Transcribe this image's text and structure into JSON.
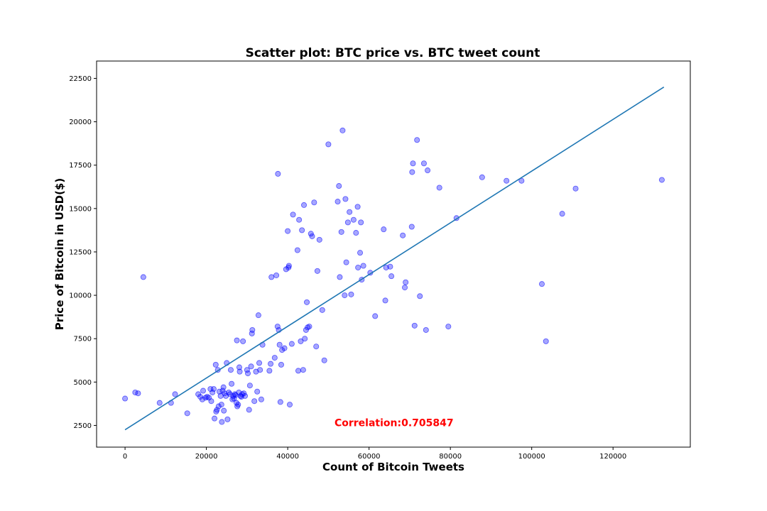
{
  "chart_data": {
    "type": "scatter",
    "title": "Scatter plot: BTC price vs. BTC tweet count",
    "xlabel": "Count of Bitcoin Tweets",
    "ylabel": "Price of Bitcoin in USD($)",
    "xlim": [
      -7000,
      139000
    ],
    "ylim": [
      1250,
      23500
    ],
    "xticks": [
      0,
      20000,
      40000,
      60000,
      80000,
      100000,
      120000
    ],
    "yticks": [
      2500,
      5000,
      7500,
      10000,
      12500,
      15000,
      17500,
      20000,
      22500
    ],
    "grid": false,
    "point_color": "#0000ff",
    "line_color": "#1f77b4",
    "annotation_color": "#ff0000",
    "annotation": "Correlation:0.705847",
    "annotation_pos": {
      "x": 51500,
      "y": 2450
    },
    "regression_line": [
      [
        0,
        2250
      ],
      [
        132500,
        22000
      ]
    ],
    "points": [
      [
        0,
        4050
      ],
      [
        2500,
        4400
      ],
      [
        3200,
        4350
      ],
      [
        4500,
        11050
      ],
      [
        8500,
        3800
      ],
      [
        11300,
        3800
      ],
      [
        12300,
        4300
      ],
      [
        15300,
        3200
      ],
      [
        18000,
        4300
      ],
      [
        18500,
        4150
      ],
      [
        19000,
        4000
      ],
      [
        19200,
        4500
      ],
      [
        19800,
        4100
      ],
      [
        20200,
        4150
      ],
      [
        20600,
        4100
      ],
      [
        21000,
        4600
      ],
      [
        21200,
        3900
      ],
      [
        21500,
        4400
      ],
      [
        21800,
        4600
      ],
      [
        22000,
        2900
      ],
      [
        22300,
        6000
      ],
      [
        22400,
        3300
      ],
      [
        22600,
        3400
      ],
      [
        22800,
        5700
      ],
      [
        23000,
        3600
      ],
      [
        23200,
        4450
      ],
      [
        23500,
        4200
      ],
      [
        23700,
        3700
      ],
      [
        23800,
        2700
      ],
      [
        24000,
        4500
      ],
      [
        24200,
        4700
      ],
      [
        24300,
        3350
      ],
      [
        24500,
        4350
      ],
      [
        24800,
        4200
      ],
      [
        25000,
        6100
      ],
      [
        25200,
        2850
      ],
      [
        25500,
        4400
      ],
      [
        25800,
        4300
      ],
      [
        26000,
        5700
      ],
      [
        26200,
        4900
      ],
      [
        26400,
        4000
      ],
      [
        26600,
        4200
      ],
      [
        26800,
        4050
      ],
      [
        27000,
        4300
      ],
      [
        27200,
        4250
      ],
      [
        27400,
        3800
      ],
      [
        27500,
        7400
      ],
      [
        27600,
        3600
      ],
      [
        27800,
        3700
      ],
      [
        28000,
        4400
      ],
      [
        28100,
        5850
      ],
      [
        28200,
        5600
      ],
      [
        28400,
        4200
      ],
      [
        28600,
        4150
      ],
      [
        28800,
        4300
      ],
      [
        29000,
        7350
      ],
      [
        29200,
        4350
      ],
      [
        29500,
        4200
      ],
      [
        30000,
        5700
      ],
      [
        30200,
        5500
      ],
      [
        30500,
        3400
      ],
      [
        30700,
        4800
      ],
      [
        31000,
        5900
      ],
      [
        31200,
        7800
      ],
      [
        31300,
        8000
      ],
      [
        31800,
        3900
      ],
      [
        32200,
        5600
      ],
      [
        32500,
        4450
      ],
      [
        32800,
        8850
      ],
      [
        33000,
        6100
      ],
      [
        33200,
        5700
      ],
      [
        33500,
        4000
      ],
      [
        33800,
        7150
      ],
      [
        35500,
        5650
      ],
      [
        35800,
        6050
      ],
      [
        36000,
        11050
      ],
      [
        36800,
        6400
      ],
      [
        37200,
        11150
      ],
      [
        37500,
        8200
      ],
      [
        37600,
        17000
      ],
      [
        37800,
        8000
      ],
      [
        38000,
        7150
      ],
      [
        38200,
        3850
      ],
      [
        38400,
        6000
      ],
      [
        38600,
        6850
      ],
      [
        39200,
        6950
      ],
      [
        39600,
        11500
      ],
      [
        40000,
        13700
      ],
      [
        40200,
        11600
      ],
      [
        40300,
        11700
      ],
      [
        40500,
        3700
      ],
      [
        41000,
        7200
      ],
      [
        41300,
        14650
      ],
      [
        42400,
        12600
      ],
      [
        42600,
        5650
      ],
      [
        42800,
        14350
      ],
      [
        43200,
        7350
      ],
      [
        43500,
        13750
      ],
      [
        43800,
        5700
      ],
      [
        44000,
        15200
      ],
      [
        44200,
        7500
      ],
      [
        44500,
        8000
      ],
      [
        44700,
        9600
      ],
      [
        44900,
        8150
      ],
      [
        45300,
        8200
      ],
      [
        45700,
        13550
      ],
      [
        46000,
        13400
      ],
      [
        46500,
        15350
      ],
      [
        47000,
        7050
      ],
      [
        47300,
        11400
      ],
      [
        47800,
        13200
      ],
      [
        48500,
        9150
      ],
      [
        49000,
        6250
      ],
      [
        50000,
        18700
      ],
      [
        52300,
        15400
      ],
      [
        52600,
        16300
      ],
      [
        52800,
        11050
      ],
      [
        53200,
        13650
      ],
      [
        53500,
        19500
      ],
      [
        54000,
        10000
      ],
      [
        54200,
        15550
      ],
      [
        54400,
        11900
      ],
      [
        54800,
        14200
      ],
      [
        55200,
        14800
      ],
      [
        55600,
        10050
      ],
      [
        56200,
        14350
      ],
      [
        56800,
        13600
      ],
      [
        57200,
        15100
      ],
      [
        57300,
        11600
      ],
      [
        57800,
        12450
      ],
      [
        58000,
        14200
      ],
      [
        58200,
        10900
      ],
      [
        58600,
        11700
      ],
      [
        60300,
        11300
      ],
      [
        61500,
        8800
      ],
      [
        63600,
        13800
      ],
      [
        64000,
        9700
      ],
      [
        64200,
        11600
      ],
      [
        65200,
        11650
      ],
      [
        65500,
        11100
      ],
      [
        68300,
        13450
      ],
      [
        68800,
        10450
      ],
      [
        69000,
        10750
      ],
      [
        70500,
        13950
      ],
      [
        70600,
        17100
      ],
      [
        70800,
        17600
      ],
      [
        71200,
        8250
      ],
      [
        71800,
        18950
      ],
      [
        72500,
        9950
      ],
      [
        73500,
        17600
      ],
      [
        74000,
        8000
      ],
      [
        74400,
        17200
      ],
      [
        77300,
        16200
      ],
      [
        79500,
        8200
      ],
      [
        81500,
        14450
      ],
      [
        87800,
        16800
      ],
      [
        93800,
        16600
      ],
      [
        97500,
        16600
      ],
      [
        102500,
        10650
      ],
      [
        103500,
        7350
      ],
      [
        107500,
        14700
      ],
      [
        110800,
        16150
      ],
      [
        132000,
        16650
      ]
    ]
  }
}
